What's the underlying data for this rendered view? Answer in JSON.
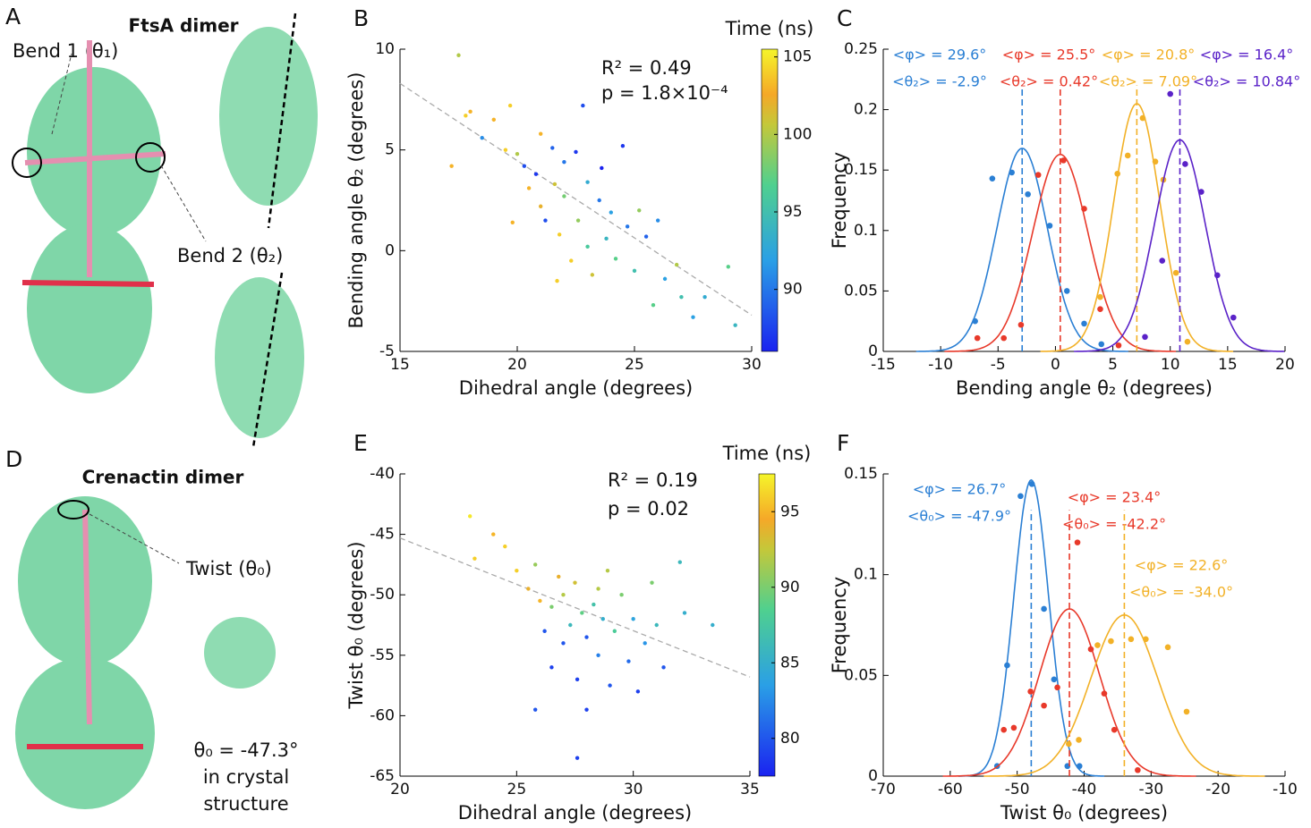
{
  "illustrations": {
    "panel_a": "A",
    "title_a": "FtsA dimer",
    "bend1": "Bend 1 (θ₁)",
    "bend2": "Bend 2 (θ₂)",
    "panel_d": "D",
    "title_d": "Crenactin dimer",
    "twist": "Twist (θ₀)",
    "crystal": [
      "θ₀ = -47.3°",
      "in crystal",
      "structure"
    ]
  },
  "chart_data": [
    {
      "type": "scatter",
      "label": "B",
      "xlabel": "Dihedral angle (degrees)",
      "ylabel": "Bending angle θ₂ (degrees)",
      "xlim": [
        15,
        30
      ],
      "xticks": [
        15,
        20,
        25,
        30
      ],
      "ylim": [
        -5,
        10
      ],
      "yticks": [
        -5,
        0,
        5,
        10
      ],
      "colorbar_title": "Time (ns)",
      "clim": [
        86,
        105.5
      ],
      "cticks": [
        90,
        95,
        100,
        105
      ],
      "annotations": [
        "R² = 0.49",
        "p = 1.8×10⁻⁴"
      ],
      "fit": {
        "x": [
          15,
          30
        ],
        "values": [
          8.3,
          -3.2
        ]
      },
      "x": [
        17.5,
        17.2,
        17.8,
        18,
        18.5,
        19,
        19.5,
        19.7,
        20,
        20.3,
        20.5,
        20.8,
        21,
        21,
        21.2,
        21.5,
        21.6,
        21.8,
        22,
        22,
        22.3,
        22.5,
        22.6,
        22.8,
        23,
        23,
        23.2,
        23.5,
        23.6,
        23.8,
        24,
        24.2,
        24.5,
        24.7,
        25,
        25.2,
        25.5,
        25.8,
        26,
        26.3,
        26.8,
        27,
        27.5,
        28,
        29,
        29.3,
        21.7,
        19.8
      ],
      "values": [
        9.7,
        4.2,
        6.7,
        6.9,
        5.6,
        6.5,
        5,
        7.2,
        4.8,
        4.2,
        3.1,
        3.8,
        5.8,
        2.2,
        1.5,
        5.1,
        3.3,
        0.8,
        4.4,
        2.7,
        -0.5,
        4.9,
        1.5,
        7.2,
        3.4,
        0.2,
        -1.2,
        2.5,
        4.1,
        0.6,
        1.9,
        -0.4,
        5.2,
        1.2,
        -1,
        2,
        0.7,
        -2.7,
        1.5,
        -1.4,
        -0.7,
        -2.3,
        -3.3,
        -2.3,
        -0.8,
        -3.7,
        -1.5,
        1.4
      ],
      "time": [
        100,
        103,
        104,
        103,
        91,
        103,
        104,
        104,
        100,
        88,
        103,
        87,
        103,
        102,
        88,
        89,
        101,
        104,
        90,
        98,
        104,
        87,
        99,
        88,
        93,
        96,
        101,
        90,
        86,
        94,
        92,
        97,
        87,
        90,
        95,
        99,
        89,
        97,
        91,
        92,
        100,
        95,
        92,
        93,
        97,
        94,
        104,
        103
      ]
    },
    {
      "type": "distribution",
      "label": "C",
      "xlabel": "Bending angle θ₂ (degrees)",
      "ylabel": "Frequency",
      "xlim": [
        -15,
        20
      ],
      "xticks": [
        -15,
        -10,
        -5,
        0,
        5,
        10,
        15,
        20
      ],
      "ylim": [
        0,
        0.25
      ],
      "yticks": [
        0,
        0.05,
        0.1,
        0.15,
        0.2,
        0.25
      ],
      "series": [
        {
          "color": "#2a7fd4",
          "phi": "<φ> = 29.6°",
          "fit": {
            "mean": {
              "value": -2.9,
              "label": "<θ₂> = -2.9°"
            },
            "sd": 2.2,
            "peak": 0.168
          },
          "x": [
            -7,
            -5.5,
            -3.8,
            -2.4,
            -0.5,
            1,
            2.5,
            4
          ],
          "values": [
            0.025,
            0.143,
            0.148,
            0.13,
            0.104,
            0.05,
            0.023,
            0.006
          ]
        },
        {
          "color": "#e8392a",
          "phi": "<φ> = 25.5°",
          "fit": {
            "mean": {
              "value": 0.42,
              "label": "<θ₂> = 0.42°"
            },
            "sd": 2.4,
            "peak": 0.163
          },
          "x": [
            -6.8,
            -4.5,
            -3,
            -1.5,
            0.7,
            2.5,
            3.9,
            5.5
          ],
          "values": [
            0.011,
            0.011,
            0.022,
            0.146,
            0.158,
            0.118,
            0.035,
            0.005
          ]
        },
        {
          "color": "#f2b127",
          "phi": "<φ> = 20.8°",
          "fit": {
            "mean": {
              "value": 7.09,
              "label": "<θ₂> = 7.09°"
            },
            "sd": 2.0,
            "peak": 0.205
          },
          "x": [
            3.9,
            5.4,
            6.3,
            7.6,
            8.7,
            9.4,
            10.5,
            11.5
          ],
          "values": [
            0.045,
            0.147,
            0.162,
            0.193,
            0.157,
            0.142,
            0.065,
            0.008
          ]
        },
        {
          "color": "#5a22c8",
          "phi": "<φ> = 16.4°",
          "fit": {
            "mean": {
              "value": 10.84,
              "label": "<θ₂> = 10.84°"
            },
            "sd": 2.2,
            "peak": 0.175
          },
          "x": [
            7.8,
            9.3,
            10,
            11.3,
            12.7,
            14.1,
            15.5
          ],
          "values": [
            0.012,
            0.075,
            0.213,
            0.155,
            0.132,
            0.063,
            0.028
          ]
        }
      ]
    },
    {
      "type": "scatter",
      "label": "E",
      "xlabel": "Dihedral angle (degrees)",
      "ylabel": "Twist θ₀ (degrees)",
      "xlim": [
        20,
        35
      ],
      "xticks": [
        20,
        25,
        30,
        35
      ],
      "ylim": [
        -65,
        -40
      ],
      "yticks": [
        -65,
        -60,
        -55,
        -50,
        -45,
        -40
      ],
      "colorbar_title": "Time (ns)",
      "clim": [
        77.5,
        97.5
      ],
      "cticks": [
        80,
        85,
        90,
        95
      ],
      "annotations": [
        "R² = 0.19",
        "p = 0.02"
      ],
      "fit": {
        "x": [
          20,
          35
        ],
        "values": [
          -45.3,
          -56.8
        ]
      },
      "x": [
        23,
        23.2,
        24,
        24.5,
        25,
        25.5,
        25.8,
        26,
        26.2,
        26.5,
        26.5,
        27,
        27,
        27.3,
        27.5,
        27.6,
        27.8,
        28,
        28,
        28.3,
        28.5,
        28.7,
        28.9,
        29,
        29.2,
        29.5,
        29.8,
        30,
        30.2,
        30.5,
        30.8,
        31,
        31.3,
        32,
        32.2,
        33.4,
        27.6,
        25.8,
        26.8,
        28.5
      ],
      "values": [
        -43.5,
        -47,
        -45,
        -46,
        -48,
        -49.5,
        -47.5,
        -50.5,
        -53,
        -51,
        -56,
        -50,
        -54,
        -52.5,
        -49,
        -57,
        -51.5,
        -53.5,
        -59.5,
        -50.8,
        -55,
        -52,
        -48,
        -57.5,
        -53,
        -50,
        -55.5,
        -52,
        -58,
        -54,
        -49,
        -52.5,
        -56,
        -47.3,
        -51.5,
        -52.5,
        -63.5,
        -59.5,
        -48.5,
        -49.5
      ],
      "time": [
        97,
        96,
        95,
        96,
        96,
        94,
        91,
        95,
        80,
        90,
        79,
        92,
        80,
        86,
        93,
        79,
        89,
        80,
        79,
        87,
        82,
        85,
        92,
        80,
        88,
        90,
        81,
        84,
        79,
        83,
        90,
        86,
        80,
        86,
        85,
        85,
        79,
        80,
        94,
        92
      ]
    },
    {
      "type": "distribution",
      "label": "F",
      "xlabel": "Twist θ₀ (degrees)",
      "ylabel": "Frequency",
      "xlim": [
        -70,
        -10
      ],
      "xticks": [
        -70,
        -60,
        -50,
        -40,
        -30,
        -20,
        -10
      ],
      "ylim": [
        0,
        0.15
      ],
      "yticks": [
        0,
        0.05,
        0.1,
        0.15
      ],
      "series": [
        {
          "color": "#2a7fd4",
          "phi": "<φ> = 26.7°",
          "fit": {
            "mean": {
              "value": -47.9,
              "label": "<θ₀> = -47.9°"
            },
            "sd": 2.6,
            "peak": 0.147
          },
          "x": [
            -53,
            -51.5,
            -49.5,
            -47.8,
            -46,
            -44.5,
            -42.5,
            -40.7
          ],
          "values": [
            0.005,
            0.055,
            0.139,
            0.145,
            0.083,
            0.048,
            0.005,
            0.005
          ]
        },
        {
          "color": "#e8392a",
          "phi": "<φ> = 23.4°",
          "fit": {
            "mean": {
              "value": -42.2,
              "label": "<θ₀> = -42.2°"
            },
            "sd": 4.5,
            "peak": 0.083
          },
          "x": [
            -52,
            -50.5,
            -48,
            -46,
            -44,
            -41,
            -39,
            -37,
            -35.5,
            -32
          ],
          "values": [
            0.023,
            0.024,
            0.042,
            0.035,
            0.044,
            0.116,
            0.063,
            0.041,
            0.023,
            0.003
          ]
        },
        {
          "color": "#f2b127",
          "phi": "<φ> = 22.6°",
          "fit": {
            "mean": {
              "value": -34.0,
              "label": "<θ₀> = -34.0°"
            },
            "sd": 5,
            "peak": 0.08
          },
          "x": [
            -42.3,
            -40.8,
            -38,
            -36,
            -33,
            -30.8,
            -27.5,
            -24.7
          ],
          "values": [
            0.016,
            0.018,
            0.065,
            0.067,
            0.068,
            0.068,
            0.064,
            0.032
          ]
        }
      ]
    }
  ]
}
